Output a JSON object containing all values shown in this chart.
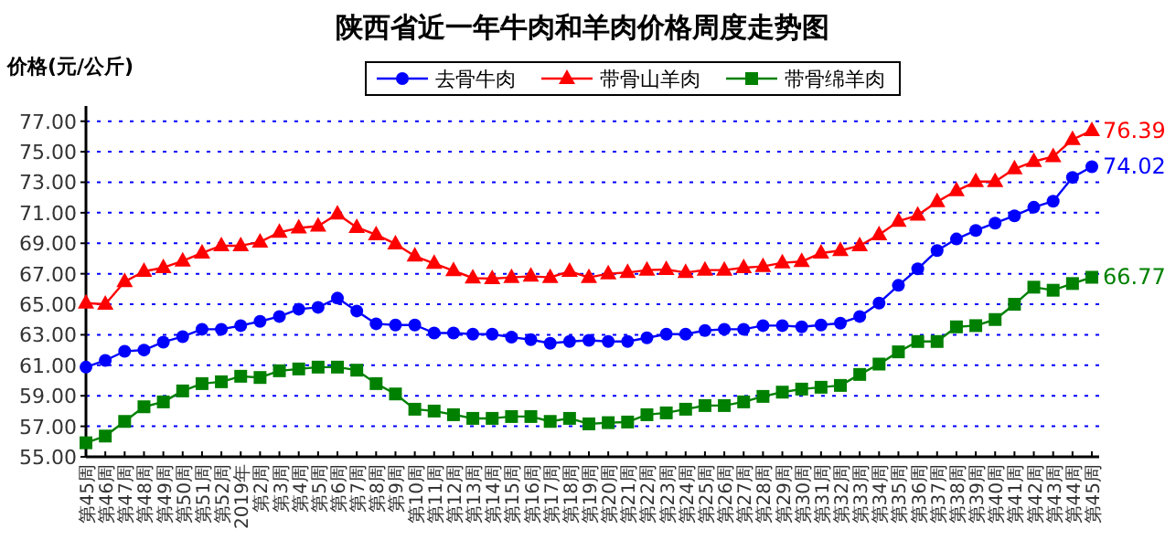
{
  "chart_data": {
    "type": "line",
    "title": "陕西省近一年牛肉和羊肉价格周度走势图",
    "ylabel": "价格(元/公斤)",
    "categories": [
      "第45周",
      "第46周",
      "第47周",
      "第48周",
      "第49周",
      "第50周",
      "第51周",
      "第52周",
      "2019年",
      "第2周",
      "第3周",
      "第4周",
      "第5周",
      "第6周",
      "第7周",
      "第8周",
      "第9周",
      "第10周",
      "第11周",
      "第12周",
      "第13周",
      "第14周",
      "第15周",
      "第16周",
      "第17周",
      "第18周",
      "第19周",
      "第20周",
      "第21周",
      "第22周",
      "第23周",
      "第24周",
      "第25周",
      "第26周",
      "第27周",
      "第28周",
      "第29周",
      "第30周",
      "第31周",
      "第32周",
      "第33周",
      "第34周",
      "第35周",
      "第36周",
      "第37周",
      "第38周",
      "第39周",
      "第40周",
      "第41周",
      "第42周",
      "第43周",
      "第44周",
      "第45周"
    ],
    "series": [
      {
        "name": "去骨牛肉",
        "color": "#0000ff",
        "marker": "circle",
        "values": [
          60.88,
          61.32,
          61.92,
          62.0,
          62.52,
          62.88,
          63.36,
          63.36,
          63.6,
          63.88,
          64.2,
          64.68,
          64.8,
          65.4,
          64.56,
          63.72,
          63.64,
          63.64,
          63.12,
          63.12,
          63.04,
          63.04,
          62.84,
          62.68,
          62.44,
          62.56,
          62.64,
          62.56,
          62.56,
          62.8,
          63.04,
          63.04,
          63.28,
          63.36,
          63.36,
          63.6,
          63.6,
          63.52,
          63.64,
          63.76,
          64.2,
          65.08,
          66.24,
          67.32,
          68.52,
          69.28,
          69.84,
          70.32,
          70.8,
          71.36,
          71.76,
          73.32,
          74.02
        ],
        "value_labels": [
          null,
          null,
          null,
          null,
          null,
          null,
          null,
          null,
          null,
          null,
          null,
          null,
          null,
          null,
          null,
          null,
          null,
          null,
          null,
          null,
          null,
          null,
          null,
          null,
          null,
          null,
          null,
          null,
          null,
          null,
          null,
          null,
          null,
          null,
          null,
          null,
          null,
          null,
          null,
          null,
          null,
          null,
          null,
          null,
          null,
          null,
          null,
          null,
          null,
          null,
          null,
          null,
          "74.02"
        ]
      },
      {
        "name": "带骨山羊肉",
        "color": "#ff0000",
        "marker": "triangle",
        "values": [
          65.08,
          65.0,
          66.48,
          67.16,
          67.4,
          67.84,
          68.36,
          68.84,
          68.84,
          69.08,
          69.72,
          70.0,
          70.12,
          70.92,
          70.04,
          69.56,
          68.96,
          68.16,
          67.68,
          67.2,
          66.72,
          66.68,
          66.76,
          66.84,
          66.76,
          67.16,
          66.76,
          67.0,
          67.08,
          67.24,
          67.28,
          67.08,
          67.24,
          67.24,
          67.4,
          67.48,
          67.72,
          67.8,
          68.36,
          68.52,
          68.84,
          69.56,
          70.44,
          70.84,
          71.72,
          72.44,
          73.04,
          73.04,
          73.88,
          74.36,
          74.68,
          75.8,
          76.39
        ],
        "value_labels": [
          null,
          null,
          null,
          null,
          null,
          null,
          null,
          null,
          null,
          null,
          null,
          null,
          null,
          null,
          null,
          null,
          null,
          null,
          null,
          null,
          null,
          null,
          null,
          null,
          null,
          null,
          null,
          null,
          null,
          null,
          null,
          null,
          null,
          null,
          null,
          null,
          null,
          null,
          null,
          null,
          null,
          null,
          null,
          null,
          null,
          null,
          null,
          null,
          null,
          null,
          null,
          null,
          "76.39"
        ]
      },
      {
        "name": "带骨绵羊肉",
        "color": "#008000",
        "marker": "square",
        "values": [
          55.92,
          56.36,
          57.32,
          58.28,
          58.6,
          59.32,
          59.8,
          59.92,
          60.28,
          60.2,
          60.64,
          60.76,
          60.88,
          60.88,
          60.68,
          59.8,
          59.12,
          58.12,
          58.0,
          57.76,
          57.52,
          57.52,
          57.64,
          57.64,
          57.32,
          57.52,
          57.16,
          57.24,
          57.28,
          57.76,
          57.88,
          58.12,
          58.36,
          58.36,
          58.6,
          58.96,
          59.24,
          59.44,
          59.56,
          59.68,
          60.4,
          61.08,
          61.88,
          62.56,
          62.56,
          63.52,
          63.6,
          64.0,
          65.0,
          66.12,
          65.92,
          66.36,
          66.77
        ],
        "value_labels": [
          null,
          null,
          null,
          null,
          null,
          null,
          null,
          null,
          null,
          null,
          null,
          null,
          null,
          null,
          null,
          null,
          null,
          null,
          null,
          null,
          null,
          null,
          null,
          null,
          null,
          null,
          null,
          null,
          null,
          null,
          null,
          null,
          null,
          null,
          null,
          null,
          null,
          null,
          null,
          null,
          null,
          null,
          null,
          null,
          null,
          null,
          null,
          null,
          null,
          null,
          null,
          null,
          "66.77"
        ]
      }
    ],
    "ylim": [
      55,
      78
    ],
    "yticks": [
      {
        "value": 55,
        "label": "55.00"
      },
      {
        "value": 57,
        "label": "57.00"
      },
      {
        "value": 59,
        "label": "59.00"
      },
      {
        "value": 61,
        "label": "61.00"
      },
      {
        "value": 63,
        "label": "63.00"
      },
      {
        "value": 65,
        "label": "65.00"
      },
      {
        "value": 67,
        "label": "67.00"
      },
      {
        "value": 69,
        "label": "69.00"
      },
      {
        "value": 71,
        "label": "71.00"
      },
      {
        "value": 73,
        "label": "73.00"
      },
      {
        "value": 75,
        "label": "75.00"
      },
      {
        "value": 77,
        "label": "77.00"
      }
    ],
    "grid": "y",
    "legend": "top"
  }
}
